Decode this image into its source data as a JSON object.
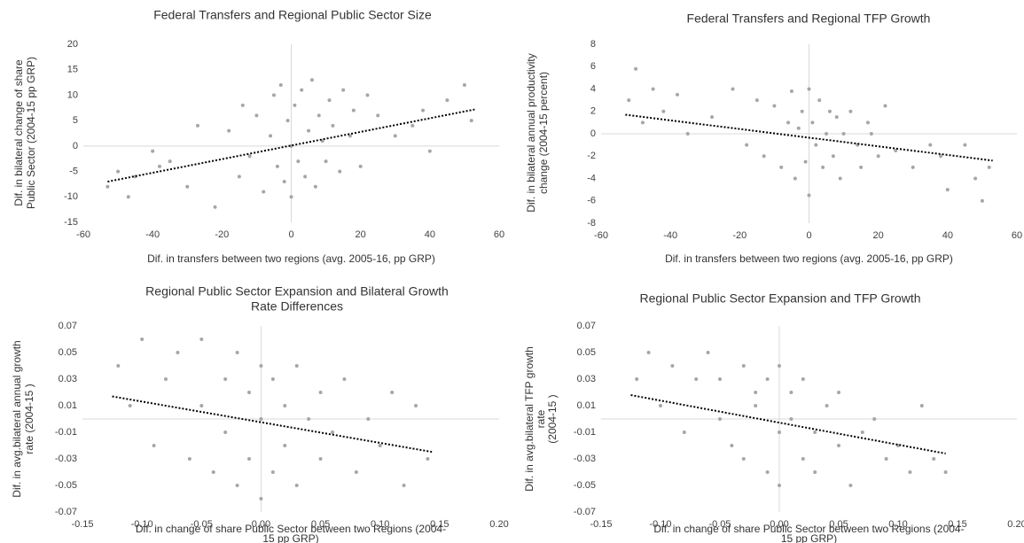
{
  "chart_data": [
    {
      "type": "scatter",
      "title": [
        "Federal Transfers and Regional Public Sector Size"
      ],
      "xlabel": [
        "Dif. in transfers between two regions (avg. 2005-16, pp GRP)"
      ],
      "ylabel": [
        "Dif. in bilateral change of share",
        "Public Sector  (2004-15 pp GRP)"
      ],
      "color": "#a6a6a6",
      "x": [
        -53,
        -50,
        -47,
        -45,
        -40,
        -38,
        -35,
        -30,
        -27,
        -22,
        -18,
        -15,
        -14,
        -12,
        -10,
        -8,
        -6,
        -5,
        -4,
        -3,
        -2,
        -1,
        0,
        0,
        1,
        2,
        3,
        4,
        5,
        6,
        7,
        8,
        9,
        10,
        11,
        12,
        14,
        15,
        17,
        18,
        20,
        22,
        25,
        30,
        35,
        38,
        40,
        45,
        50,
        52
      ],
      "y": [
        -8,
        -5,
        -10,
        -6,
        -1,
        -4,
        -3,
        -8,
        4,
        -12,
        3,
        -6,
        8,
        -2,
        6,
        -9,
        2,
        10,
        -4,
        12,
        -7,
        5,
        -10,
        0,
        8,
        -3,
        11,
        -6,
        3,
        13,
        -8,
        6,
        1,
        -3,
        9,
        4,
        -5,
        11,
        2,
        7,
        -4,
        10,
        6,
        2,
        4,
        7,
        -1,
        9,
        12,
        5
      ],
      "trendline": {
        "x": [
          -53,
          53
        ],
        "y": [
          -7,
          7.2
        ]
      },
      "xlim": [
        -60,
        60
      ],
      "xticks": [
        -60,
        -40,
        -20,
        0,
        20,
        40,
        60
      ],
      "ylim": [
        -15,
        20
      ],
      "yticks": [
        -15,
        -10,
        -5,
        0,
        5,
        10,
        15,
        20
      ]
    },
    {
      "type": "scatter",
      "title": [
        "Federal Transfers and Regional TFP Growth"
      ],
      "xlabel": [
        "Dif. in transfers between two regions (avg. 2005-16, pp GRP)"
      ],
      "ylabel": [
        "Dif. in bilateral annual productivity",
        "change (2004-15 percent)"
      ],
      "color": "#a6a6a6",
      "x": [
        -52,
        -50,
        -48,
        -45,
        -42,
        -38,
        -35,
        -28,
        -22,
        -18,
        -15,
        -13,
        -10,
        -8,
        -6,
        -5,
        -4,
        -3,
        -2,
        -1,
        0,
        0,
        1,
        2,
        3,
        4,
        5,
        6,
        7,
        8,
        9,
        10,
        12,
        14,
        15,
        17,
        18,
        20,
        22,
        25,
        30,
        35,
        38,
        40,
        45,
        48,
        50,
        52
      ],
      "y": [
        3,
        5.8,
        1,
        4,
        2,
        3.5,
        0,
        1.5,
        4,
        -1,
        3,
        -2,
        2.5,
        -3,
        1,
        3.8,
        -4,
        0.5,
        2,
        -2.5,
        4,
        -5.5,
        1,
        -1,
        3,
        -3,
        0,
        2,
        -2,
        1.5,
        -4,
        0,
        2,
        -1,
        -3,
        1,
        0,
        -2,
        2.5,
        -1.5,
        -3,
        -1,
        -2,
        -5,
        -1,
        -4,
        -6,
        -3
      ],
      "trendline": {
        "x": [
          -53,
          53
        ],
        "y": [
          1.7,
          -2.4
        ]
      },
      "xlim": [
        -60,
        60
      ],
      "xticks": [
        -60,
        -40,
        -20,
        0,
        20,
        40,
        60
      ],
      "ylim": [
        -8,
        8
      ],
      "yticks": [
        -8,
        -6,
        -4,
        -2,
        0,
        2,
        4,
        6,
        8
      ]
    },
    {
      "type": "scatter",
      "title": [
        "Regional Public Sector Expansion and Bilateral Growth",
        "Rate Differences"
      ],
      "xlabel": [
        "Dif. in change of share Public Sector between two Regions  (2004-",
        "15 pp GRP)"
      ],
      "ylabel": [
        "Dif. in avg.bilateral  annual growth",
        "rate  (2004-15 )"
      ],
      "color": "#a6a6a6",
      "x": [
        -0.12,
        -0.11,
        -0.1,
        -0.09,
        -0.08,
        -0.07,
        -0.06,
        -0.05,
        -0.05,
        -0.04,
        -0.03,
        -0.03,
        -0.02,
        -0.02,
        -0.01,
        -0.01,
        0,
        0,
        0,
        0.01,
        0.01,
        0.02,
        0.02,
        0.03,
        0.03,
        0.04,
        0.05,
        0.05,
        0.06,
        0.07,
        0.08,
        0.09,
        0.1,
        0.11,
        0.12,
        0.13,
        0.14
      ],
      "y": [
        0.04,
        0.01,
        0.06,
        -0.02,
        0.03,
        0.05,
        -0.03,
        0.06,
        0.01,
        -0.04,
        0.03,
        -0.01,
        0.05,
        -0.05,
        0.02,
        -0.03,
        0.04,
        -0.06,
        0,
        0.03,
        -0.04,
        0.01,
        -0.02,
        0.04,
        -0.05,
        0,
        0.02,
        -0.03,
        -0.01,
        0.03,
        -0.04,
        0,
        -0.02,
        0.02,
        -0.05,
        0.01,
        -0.03
      ],
      "trendline": {
        "x": [
          -0.125,
          0.145
        ],
        "y": [
          0.017,
          -0.025
        ]
      },
      "xlim": [
        -0.15,
        0.2
      ],
      "xticks": [
        -0.15,
        {
          "value": -0.1,
          "label": "-0.10"
        },
        -0.05,
        {
          "value": 0,
          "label": "0.00"
        },
        0.05,
        {
          "value": 0.1,
          "label": "0.10"
        },
        0.15,
        {
          "value": 0.2,
          "label": "0.20"
        }
      ],
      "ylim": [
        -0.07,
        0.07
      ],
      "yticks": [
        -0.07,
        -0.05,
        -0.03,
        -0.01,
        0.01,
        0.03,
        0.05,
        0.07
      ]
    },
    {
      "type": "scatter",
      "title": [
        "Regional Public Sector Expansion and TFP Growth"
      ],
      "xlabel": [
        "Dif. in change of share Public Sector between two Regions  (2004-",
        "15 pp GRP)"
      ],
      "ylabel": [
        "Dif. in avg.bilateral  TFP growth",
        "rate",
        "(2004-15 )"
      ],
      "color": "#a6a6a6",
      "x": [
        -0.12,
        -0.11,
        -0.1,
        -0.09,
        -0.08,
        -0.07,
        -0.06,
        -0.05,
        -0.05,
        -0.04,
        -0.03,
        -0.03,
        -0.02,
        -0.02,
        -0.01,
        -0.01,
        0,
        0,
        0,
        0.01,
        0.01,
        0.02,
        0.02,
        0.03,
        0.03,
        0.04,
        0.05,
        0.05,
        0.06,
        0.07,
        0.08,
        0.09,
        0.1,
        0.11,
        0.12,
        0.13,
        0.14
      ],
      "y": [
        0.03,
        0.05,
        0.01,
        0.04,
        -0.01,
        0.03,
        0.05,
        0,
        0.03,
        -0.02,
        0.04,
        -0.03,
        0.02,
        0.01,
        -0.04,
        0.03,
        -0.01,
        0.04,
        -0.05,
        0,
        0.02,
        -0.03,
        0.03,
        -0.01,
        -0.04,
        0.01,
        -0.02,
        0.02,
        -0.05,
        -0.01,
        0,
        -0.03,
        -0.02,
        -0.04,
        0.01,
        -0.03,
        -0.04
      ],
      "trendline": {
        "x": [
          -0.125,
          0.14
        ],
        "y": [
          0.018,
          -0.026
        ]
      },
      "xlim": [
        -0.15,
        0.2
      ],
      "xticks": [
        -0.15,
        {
          "value": -0.1,
          "label": "-0.10"
        },
        -0.05,
        {
          "value": 0,
          "label": "0.00"
        },
        0.05,
        {
          "value": 0.1,
          "label": "0.10"
        },
        0.15,
        {
          "value": 0.2,
          "label": "0.20"
        }
      ],
      "ylim": [
        -0.07,
        0.07
      ],
      "yticks": [
        -0.07,
        -0.05,
        -0.03,
        -0.01,
        0.01,
        0.03,
        0.05,
        0.07
      ]
    }
  ]
}
